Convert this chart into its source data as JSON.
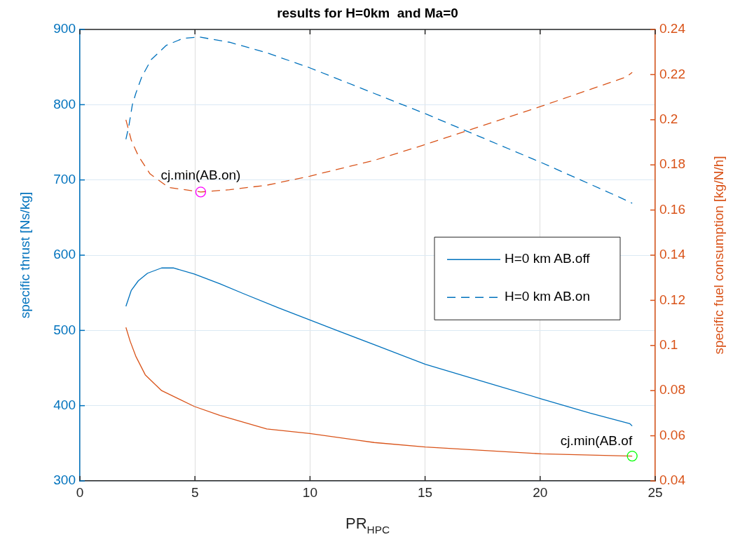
{
  "chart_data": {
    "type": "line",
    "title": "results for H=0km  and Ma=0",
    "xlabel": "PR$_{HPC}$",
    "ylabel": "specific thrust [Ns/kg]",
    "y2label": "specific fuel consumption [kg/N/h]",
    "xlim": [
      0,
      25
    ],
    "xticks": [
      0,
      5,
      10,
      15,
      20,
      25
    ],
    "ylim": [
      300,
      900
    ],
    "yticks": [
      300,
      400,
      500,
      600,
      700,
      800,
      900
    ],
    "y2lim": [
      0.04,
      0.24
    ],
    "y2ticks": [
      0.04,
      0.06,
      0.08,
      0.1,
      0.12,
      0.14,
      0.16,
      0.18,
      0.2,
      0.22,
      0.24
    ],
    "grid": true,
    "legend": "right",
    "marker": "none",
    "series": [
      {
        "name": "H=0 km AB.off",
        "color": "#0072bd",
        "line_style": "solid",
        "x": [
          2.0,
          2.23,
          2.54,
          2.94,
          3.55,
          4.06,
          4.97,
          6.09,
          7.1,
          8.63,
          9.99,
          11.17,
          12.79,
          15.01,
          17.74,
          20.06,
          22.18,
          23.9,
          24
        ],
        "values": [
          532,
          553,
          566,
          576,
          583,
          583,
          575,
          562,
          549,
          530,
          514,
          500,
          481,
          455,
          430,
          409,
          390,
          376,
          373
        ]
      },
      {
        "name": "H=0 km AB.on",
        "color": "#0072bd",
        "line_style": "dashed",
        "x": [
          2.0,
          2.13,
          2.28,
          2.43,
          2.69,
          3.1,
          3.76,
          4.47,
          5.18,
          6.5,
          8.12,
          9.99,
          12.79,
          15.01,
          20.06,
          23.45,
          24
        ],
        "values": [
          754,
          772,
          800,
          815,
          837,
          860,
          879,
          888,
          890,
          883,
          869,
          849,
          815,
          788,
          723,
          677,
          669
        ]
      },
      {
        "color": "#d95319",
        "axis": "y2",
        "line_style": "solid",
        "x": [
          2.0,
          2.18,
          2.44,
          2.84,
          3.55,
          4.97,
          6.09,
          8.12,
          9.99,
          12.79,
          15.01,
          20.06,
          24
        ],
        "values": [
          0.108,
          0.102,
          0.095,
          0.087,
          0.08,
          0.073,
          0.069,
          0.063,
          0.061,
          0.057,
          0.055,
          0.052,
          0.051
        ]
      },
      {
        "color": "#d95319",
        "axis": "y2",
        "line_style": "dashed",
        "x": [
          2.0,
          2.23,
          2.54,
          3.05,
          3.86,
          4.57,
          5.25,
          6.5,
          8.12,
          9.99,
          12.79,
          15.01,
          20.06,
          23.76,
          24
        ],
        "values": [
          0.2,
          0.191,
          0.184,
          0.176,
          0.17,
          0.169,
          0.168,
          0.169,
          0.171,
          0.175,
          0.182,
          0.189,
          0.206,
          0.219,
          0.221
        ]
      },
      {
        "type": "scatter",
        "color": "#ff00ff",
        "axis": "y2",
        "marker": "circle",
        "x": [
          5.25
        ],
        "values": [
          0.168
        ]
      },
      {
        "type": "scatter",
        "color": "#00ff00",
        "axis": "y2",
        "marker": "circle",
        "x": [
          24
        ],
        "values": [
          0.051
        ]
      }
    ],
    "annotations": [
      {
        "text": "cj.min(AB.on)",
        "x": 5.25,
        "y": 685
      },
      {
        "text": "cj.min(AB.of",
        "x": 24,
        "y": 332
      }
    ]
  }
}
